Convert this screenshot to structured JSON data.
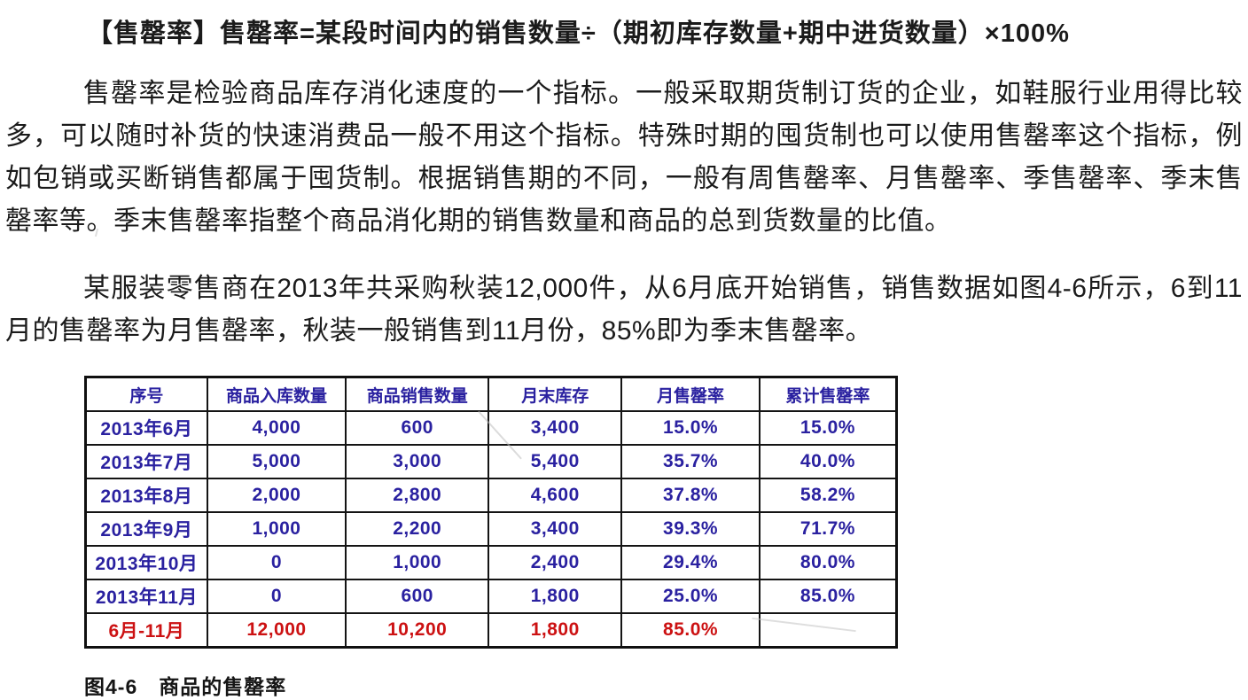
{
  "page": {
    "definition": "【售罄率】售罄率=某段时间内的销售数量÷（期初库存数量+期中进货数量）×100%",
    "paragraph1": "售罄率是检验商品库存消化速度的一个指标。一般采取期货制订货的企业，如鞋服行业用得比较多，可以随时补货的快速消费品一般不用这个指标。特殊时期的囤货制也可以使用售罄率这个指标，例如包销或买断销售都属于囤货制。根据销售期的不同，一般有周售罄率、月售罄率、季售罄率、季末售罄率等。季末售罄率指整个商品消化期的销售数量和商品的总到货数量的比值。",
    "paragraph2": "某服装零售商在2013年共采购秋装12,000件，从6月底开始销售，销售数据如图4-6所示，6到11月的售罄率为月售罄率，秋装一般销售到11月份，85%即为季末售罄率。",
    "caption": "图4-6　商品的售罄率"
  },
  "table": {
    "headers": [
      "序号",
      "商品入库数量",
      "商品销售数量",
      "月末库存",
      "月售罄率",
      "累计售罄率"
    ],
    "rows": [
      [
        "2013年6月",
        "4,000",
        "600",
        "3,400",
        "15.0%",
        "15.0%"
      ],
      [
        "2013年7月",
        "5,000",
        "3,000",
        "5,400",
        "35.7%",
        "40.0%"
      ],
      [
        "2013年8月",
        "2,000",
        "2,800",
        "4,600",
        "37.8%",
        "58.2%"
      ],
      [
        "2013年9月",
        "1,000",
        "2,200",
        "3,400",
        "39.3%",
        "71.7%"
      ],
      [
        "2013年10月",
        "0",
        "1,000",
        "2,400",
        "29.4%",
        "80.0%"
      ],
      [
        "2013年11月",
        "0",
        "600",
        "1,800",
        "25.0%",
        "85.0%"
      ]
    ],
    "summary": [
      "6月-11月",
      "12,000",
      "10,200",
      "1,800",
      "85.0%",
      ""
    ]
  },
  "colors": {
    "table_ink": "#2a21a0",
    "summary_ink": "#cc1112",
    "body_ink": "#1b1b1b",
    "border_ink": "#101010"
  }
}
